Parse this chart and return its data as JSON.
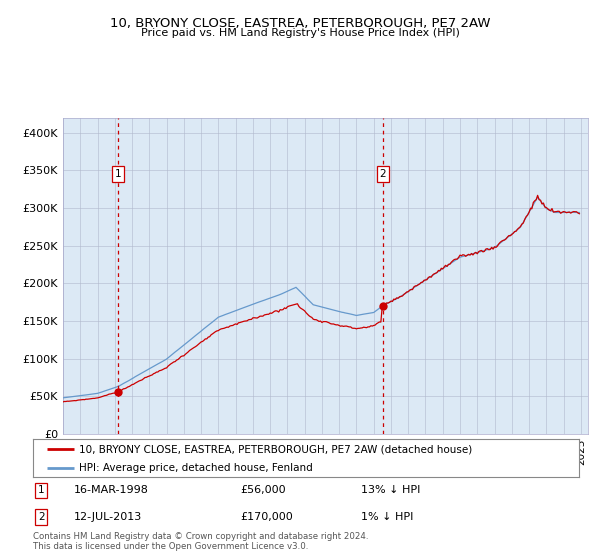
{
  "title": "10, BRYONY CLOSE, EASTREA, PETERBOROUGH, PE7 2AW",
  "subtitle": "Price paid vs. HM Land Registry's House Price Index (HPI)",
  "sale1_date": "1998-03-16",
  "sale1_price": 56000,
  "sale1_label": "1",
  "sale2_date": "2013-07-12",
  "sale2_price": 170000,
  "sale2_label": "2",
  "legend_property": "10, BRYONY CLOSE, EASTREA, PETERBOROUGH, PE7 2AW (detached house)",
  "legend_hpi": "HPI: Average price, detached house, Fenland",
  "footnote": "Contains HM Land Registry data © Crown copyright and database right 2024.\nThis data is licensed under the Open Government Licence v3.0.",
  "property_color": "#cc0000",
  "hpi_color": "#6699cc",
  "vline_color": "#cc0000",
  "bg_color": "#dce9f5",
  "grid_color": "#b0b8cc",
  "ylim": [
    0,
    420000
  ],
  "yticks": [
    0,
    50000,
    100000,
    150000,
    200000,
    250000,
    300000,
    350000,
    400000
  ],
  "ytick_labels": [
    "£0",
    "£50K",
    "£100K",
    "£150K",
    "£200K",
    "£250K",
    "£300K",
    "£350K",
    "£400K"
  ]
}
